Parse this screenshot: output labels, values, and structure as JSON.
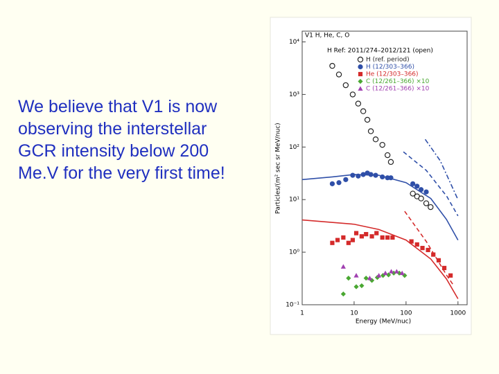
{
  "slide": {
    "text_lines": [
      "We believe that V1 is now",
      "observing the interstellar",
      "GCR intensity below 200",
      "Me.V for the very first time!"
    ]
  },
  "chart_data": {
    "type": "scatter",
    "title": "V1 H, He, C, O",
    "annotation": "H Ref: 2011/274–2012/121 (open)",
    "x_label": "Energy (MeV/nuc)",
    "y_label": "Particles/(m² sec sr MeV/nuc)",
    "x_log": true,
    "y_log": true,
    "xlim": [
      1,
      1500
    ],
    "ylim": [
      0.1,
      16000
    ],
    "xticks": [
      1,
      10,
      100,
      1000
    ],
    "yticks": [
      {
        "value": 10000,
        "label": "10⁴"
      },
      {
        "value": 1000,
        "label": "10³"
      },
      {
        "value": 100,
        "label": "10²"
      },
      {
        "value": 10,
        "label": "10¹"
      },
      {
        "value": 1,
        "label": "10⁰"
      },
      {
        "value": 0.1,
        "label": "10⁻¹"
      }
    ],
    "series": [
      {
        "name": "H (ref. period)",
        "color": "#222222",
        "marker": "open-circle",
        "x": [
          3.8,
          5.1,
          6.9,
          9.4,
          12,
          15,
          18,
          21,
          26,
          35,
          44,
          51,
          135,
          163,
          195,
          245,
          297
        ],
        "values": [
          3500,
          2400,
          1500,
          1000,
          670,
          480,
          330,
          200,
          140,
          110,
          70,
          52,
          13,
          11.5,
          10.5,
          8.5,
          7.2
        ]
      },
      {
        "name": "H (12/303–366)",
        "color": "#2f4fa8",
        "marker": "circle",
        "x": [
          3.8,
          5.1,
          6.9,
          9.4,
          12,
          15,
          18,
          21,
          26,
          35,
          44,
          51,
          135,
          163,
          195,
          245
        ],
        "values": [
          20,
          21,
          24,
          29,
          28,
          30,
          32,
          30,
          29,
          27,
          26,
          26,
          20,
          18,
          15.5,
          14
        ]
      },
      {
        "name": "He (12/303–366)",
        "color": "#d42a2a",
        "marker": "square",
        "x": [
          3.8,
          4.8,
          6.2,
          7.8,
          9.4,
          11,
          14,
          17,
          22,
          27,
          35,
          44,
          55,
          127,
          163,
          207,
          265,
          335,
          425,
          545,
          720
        ],
        "values": [
          1.5,
          1.7,
          1.9,
          1.5,
          1.7,
          2.3,
          2.0,
          2.2,
          2.0,
          2.3,
          1.9,
          1.9,
          1.9,
          1.6,
          1.4,
          1.2,
          1.1,
          0.9,
          0.7,
          0.5,
          0.36
        ]
      },
      {
        "name": "C (12/261–366) ×10",
        "color": "#4aa832",
        "marker": "diamond",
        "x": [
          6.2,
          7.8,
          11,
          14,
          17,
          22,
          28,
          36,
          46,
          58,
          74,
          94
        ],
        "values": [
          0.16,
          0.32,
          0.22,
          0.23,
          0.32,
          0.29,
          0.33,
          0.36,
          0.37,
          0.4,
          0.4,
          0.36
        ]
      },
      {
        "name": "C (12/261–366) ×10",
        "color": "#a040b0",
        "marker": "triangle",
        "x": [
          6.2,
          11,
          20,
          30,
          40,
          52,
          66,
          84
        ],
        "values": [
          0.53,
          0.36,
          0.32,
          0.36,
          0.4,
          0.43,
          0.43,
          0.4
        ]
      },
      {
        "color": "#2f4fa8",
        "style": "solid",
        "x": [
          1,
          3.8,
          10,
          30,
          100,
          300,
          600,
          1000
        ],
        "values": [
          24,
          27,
          30,
          29,
          21,
          10.5,
          4.2,
          1.7
        ]
      },
      {
        "color": "#2f4fa8",
        "style": "dashed",
        "x": [
          89,
          245,
          610,
          1000
        ],
        "values": [
          81,
          36,
          11.5,
          4.9
        ]
      },
      {
        "color": "#2f4fa8",
        "style": "dashdot",
        "x": [
          234,
          455,
          1000
        ],
        "values": [
          140,
          55,
          10
        ]
      },
      {
        "color": "#d42a2a",
        "style": "solid",
        "x": [
          1,
          10,
          30,
          100,
          300,
          600,
          1000
        ],
        "values": [
          4.1,
          3.4,
          2.7,
          1.7,
          0.74,
          0.31,
          0.13
        ]
      },
      {
        "color": "#d42a2a",
        "style": "dashed",
        "x": [
          94,
          245,
          610,
          830
        ],
        "values": [
          6,
          1.6,
          0.36,
          0.23
        ]
      }
    ]
  }
}
